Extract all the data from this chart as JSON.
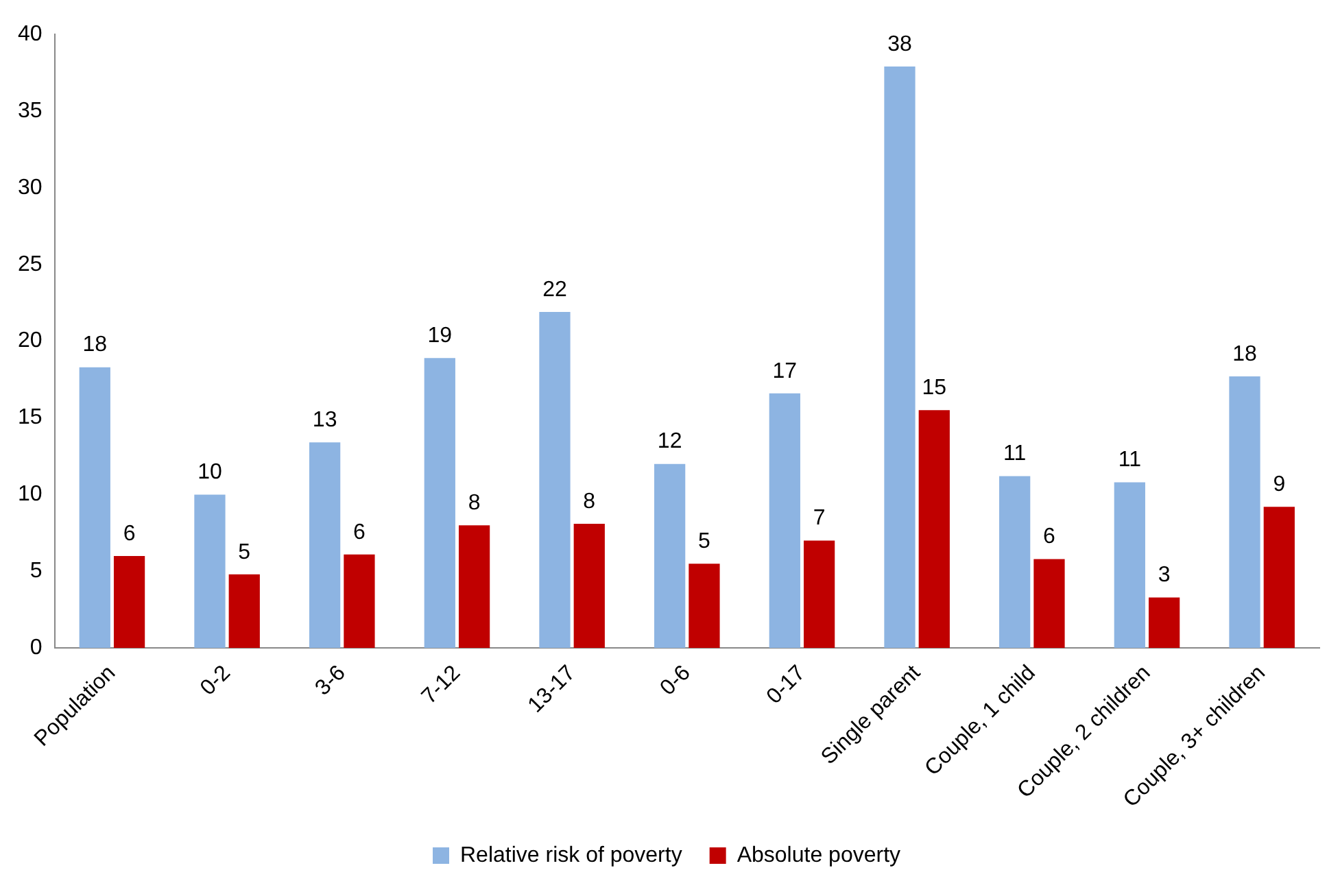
{
  "chart_data": {
    "type": "bar",
    "categories": [
      "Population",
      "0-2",
      "3-6",
      "7-12",
      "13-17",
      "0-6",
      "0-17",
      "Single parent",
      "Couple, 1 child",
      "Couple, 2 children",
      "Couple, 3+ children"
    ],
    "series": [
      {
        "name": "Relative risk of poverty",
        "color": "#8db4e2",
        "values": [
          18.3,
          10,
          13.4,
          18.9,
          21.9,
          12,
          16.6,
          37.9,
          11.2,
          10.8,
          17.7
        ],
        "value_labels": [
          "18",
          "10",
          "13",
          "19",
          "22",
          "12",
          "17",
          "38",
          "11",
          "11",
          "18"
        ]
      },
      {
        "name": "Absolute poverty",
        "color": "#c00000",
        "values": [
          6,
          4.8,
          6.1,
          8,
          8.1,
          5.5,
          7,
          15.5,
          5.8,
          3.3,
          9.2
        ],
        "value_labels": [
          "6",
          "5",
          "6",
          "8",
          "8",
          "5",
          "7",
          "15",
          "6",
          "3",
          "9"
        ]
      }
    ],
    "ylim": [
      0,
      40
    ],
    "yticks": [
      0,
      5,
      10,
      15,
      20,
      25,
      30,
      35,
      40
    ],
    "grid": false,
    "legend": "bottom"
  }
}
